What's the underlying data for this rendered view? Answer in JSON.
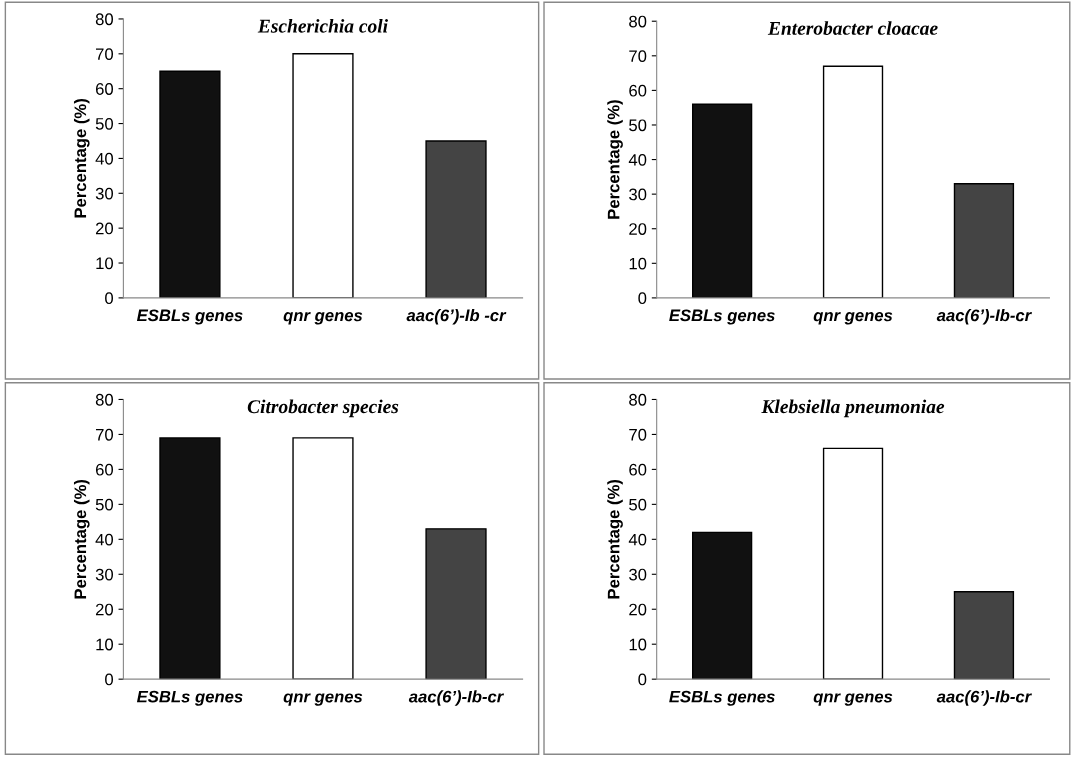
{
  "chart_data": [
    {
      "type": "bar",
      "title": "Escherichia coli",
      "ylabel": "Percentage (%)",
      "categories": [
        "ESBLs genes",
        "qnr genes",
        "aac(6’)-Ib -cr"
      ],
      "values": [
        65,
        70,
        45
      ],
      "colors": [
        "#111111",
        "#ffffff",
        "#444444"
      ],
      "ylim": [
        0,
        80
      ],
      "yticks": [
        0,
        10,
        20,
        30,
        40,
        50,
        60,
        70,
        80
      ],
      "grid": false,
      "legend": false
    },
    {
      "type": "bar",
      "title": "Enterobacter cloacae",
      "ylabel": "Percentage (%)",
      "categories": [
        "ESBLs genes",
        "qnr genes",
        "aac(6’)-Ib-cr"
      ],
      "values": [
        56,
        67,
        33
      ],
      "colors": [
        "#111111",
        "#ffffff",
        "#444444"
      ],
      "ylim": [
        0,
        80
      ],
      "yticks": [
        0,
        10,
        20,
        30,
        40,
        50,
        60,
        70,
        80
      ],
      "grid": false,
      "legend": false
    },
    {
      "type": "bar",
      "title": "Citrobacter species",
      "ylabel": "Percentage (%)",
      "categories": [
        "ESBLs genes",
        "qnr genes",
        "aac(6’)-Ib-cr"
      ],
      "values": [
        69,
        69,
        43
      ],
      "colors": [
        "#111111",
        "#ffffff",
        "#444444"
      ],
      "ylim": [
        0,
        80
      ],
      "yticks": [
        0,
        10,
        20,
        30,
        40,
        50,
        60,
        70,
        80
      ],
      "grid": false,
      "legend": false
    },
    {
      "type": "bar",
      "title": "Klebsiella pneumoniae",
      "ylabel": "Percentage (%)",
      "categories": [
        "ESBLs genes",
        "qnr genes",
        "aac(6’)-Ib-cr"
      ],
      "values": [
        42,
        66,
        25
      ],
      "colors": [
        "#111111",
        "#ffffff",
        "#444444"
      ],
      "ylim": [
        0,
        80
      ],
      "yticks": [
        0,
        10,
        20,
        30,
        40,
        50,
        60,
        70,
        80
      ],
      "grid": false,
      "legend": false
    }
  ]
}
